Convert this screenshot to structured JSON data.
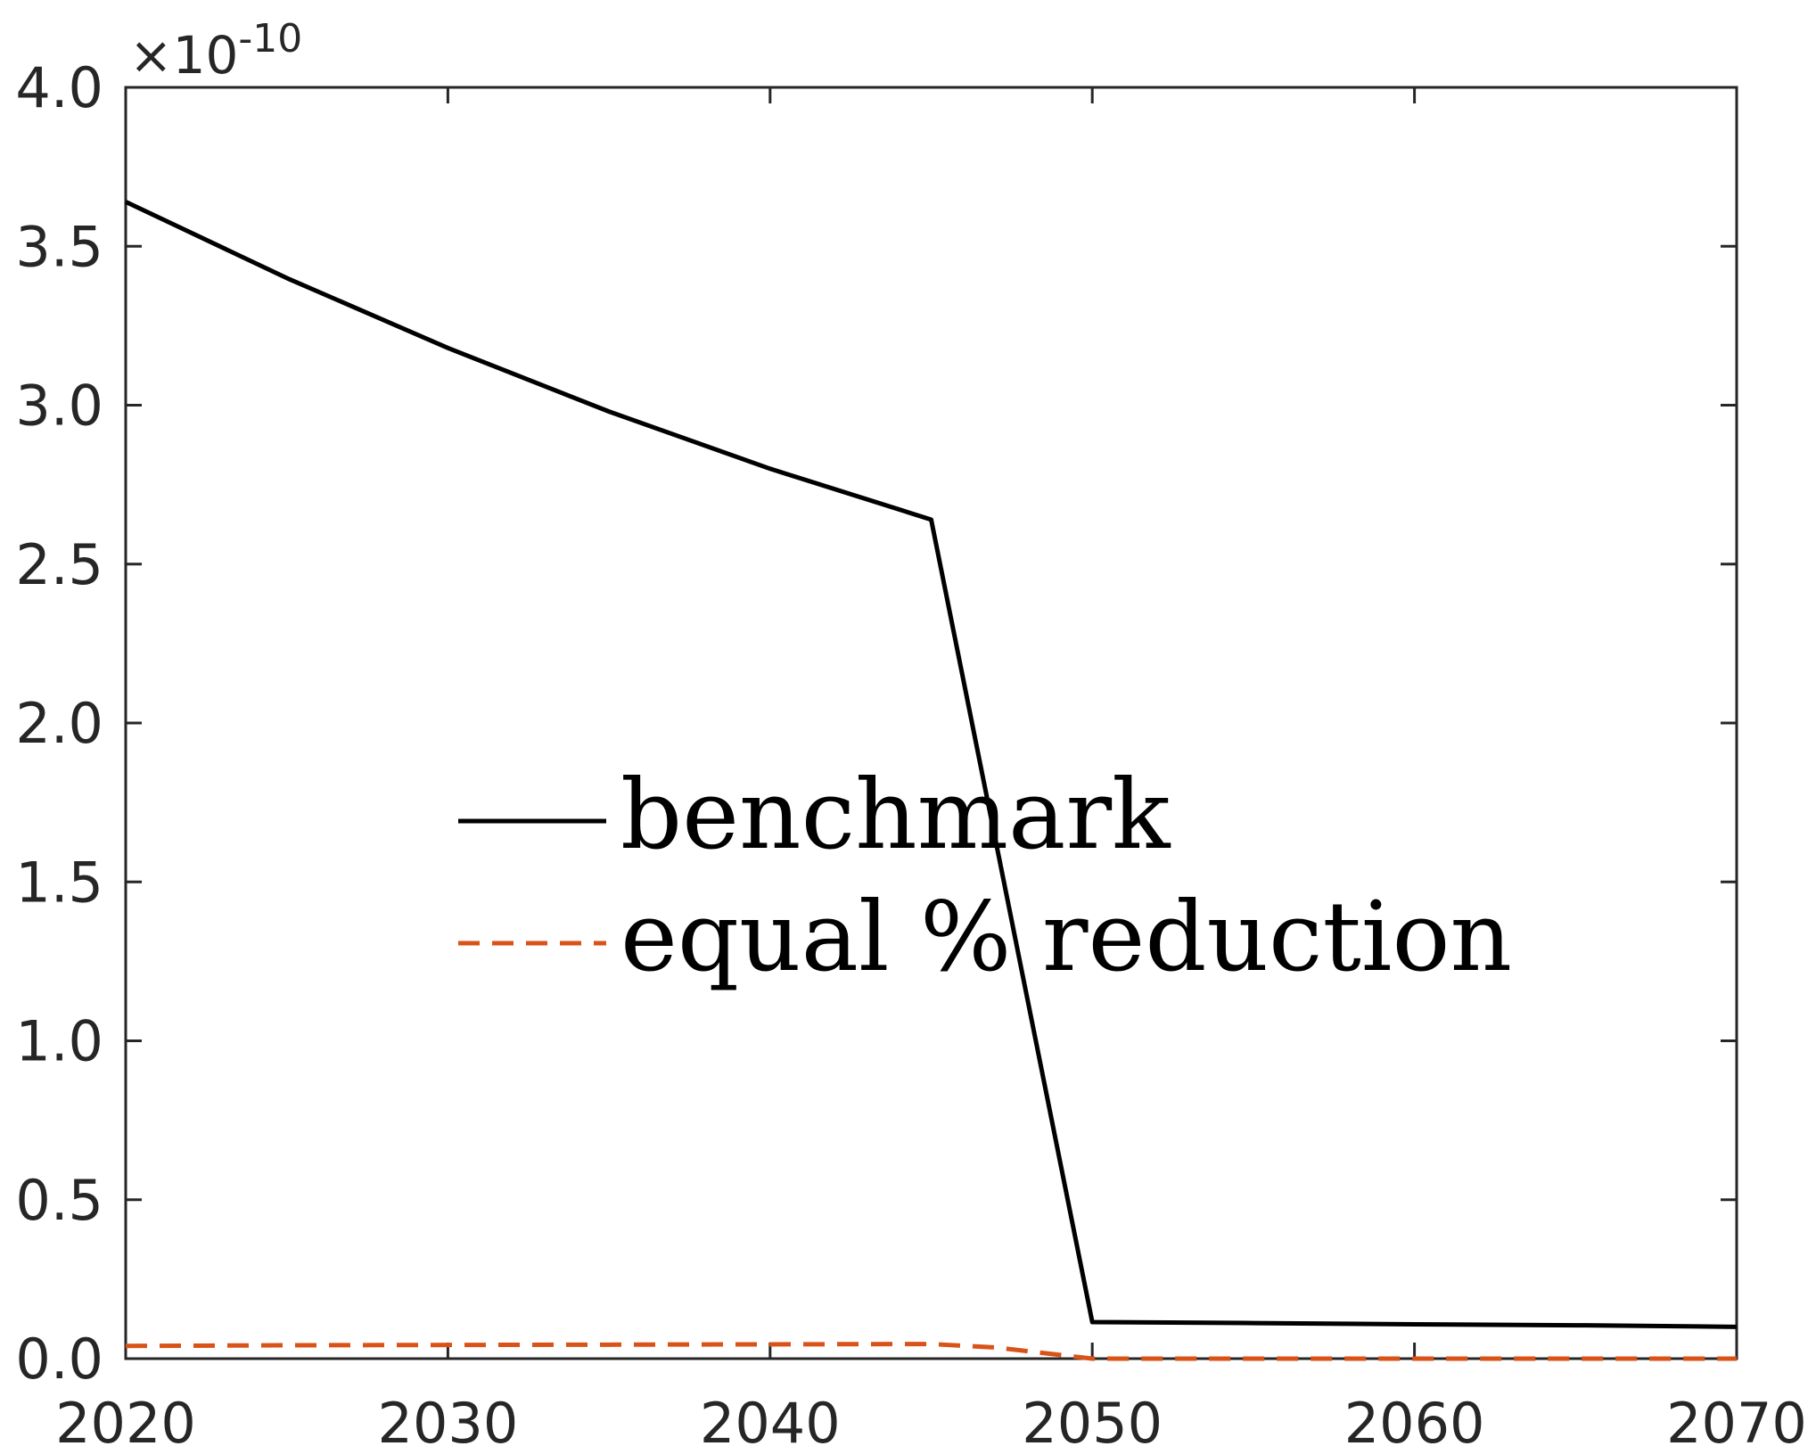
{
  "chart_data": {
    "type": "line",
    "title": "",
    "xlabel": "",
    "ylabel": "",
    "xlim": [
      2020,
      2070
    ],
    "ylim": [
      0,
      4.0
    ],
    "y_exponent_label": "×10",
    "y_exponent_power": "-10",
    "xticks": [
      2020,
      2030,
      2040,
      2050,
      2060,
      2070
    ],
    "xtick_labels": [
      "2020",
      "2030",
      "2040",
      "2050",
      "2060",
      "2070"
    ],
    "yticks": [
      0,
      0.5,
      1.0,
      1.5,
      2.0,
      2.5,
      3.0,
      3.5,
      4.0
    ],
    "ytick_labels": [
      "0.0",
      "0.5",
      "1.0",
      "1.5",
      "2.0",
      "2.5",
      "3.0",
      "3.5",
      "4.0"
    ],
    "grid": false,
    "legend_position": "center",
    "series": [
      {
        "name": "benchmark",
        "color": "#000000",
        "style": "solid",
        "x": [
          2020,
          2025,
          2030,
          2035,
          2040,
          2045,
          2050,
          2055,
          2060,
          2065,
          2070
        ],
        "y": [
          3.64,
          3.4,
          3.18,
          2.98,
          2.8,
          2.64,
          0.115,
          0.112,
          0.108,
          0.105,
          0.1
        ]
      },
      {
        "name": "equal % reduction",
        "color": "#D95319",
        "style": "dashed",
        "x": [
          2020,
          2025,
          2030,
          2035,
          2040,
          2045,
          2047,
          2050,
          2055,
          2060,
          2065,
          2070
        ],
        "y": [
          0.04,
          0.042,
          0.043,
          0.044,
          0.045,
          0.046,
          0.035,
          0.0,
          0.0,
          0.0,
          0.0,
          0.0
        ]
      }
    ]
  }
}
